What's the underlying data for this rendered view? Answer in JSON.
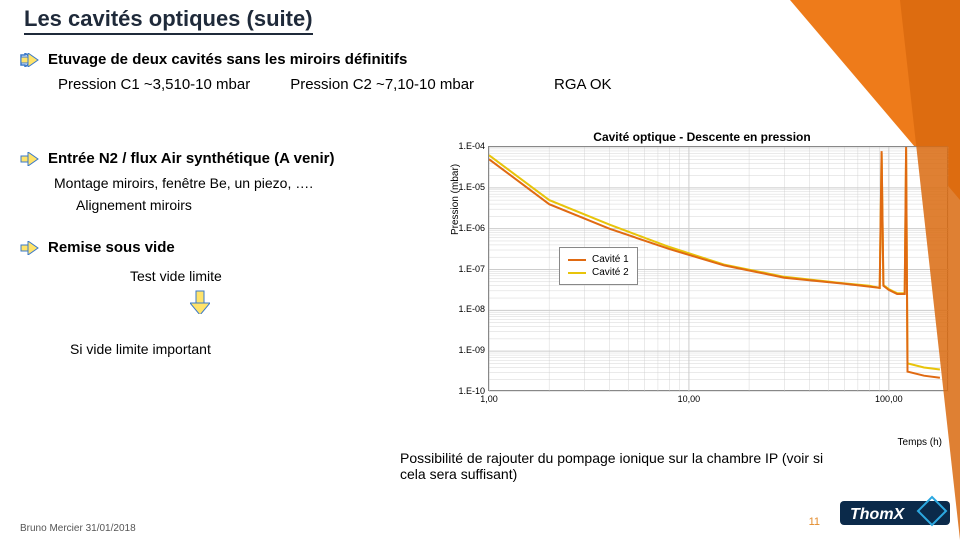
{
  "colors": {
    "accent": "#ee7b1a",
    "accent2": "#d96a0f",
    "title": "#1f2a3a",
    "cavity1": "#e06a12",
    "cavity2": "#e8c40a",
    "grid": "#cccccc",
    "plot_border": "#888888"
  },
  "title": "Les cavités optiques (suite)",
  "etuvage": "Etuvage de deux cavités sans les miroirs définitifs",
  "pression_c1": "Pression C1 ~3,510-10 mbar",
  "pression_c2": "Pression C2 ~7,10-10 mbar",
  "rga": "RGA OK",
  "entree": "Entrée N2 / flux Air synthétique  (A venir)",
  "montage": "Montage miroirs, fenêtre Be, un piezo, ….",
  "alignement": "Alignement miroirs",
  "remise": "Remise sous vide",
  "test": "Test vide limite",
  "sivide": "Si vide limite important",
  "bottom_note": "Possibilité de rajouter du pompage ionique sur la chambre IP (voir si cela sera suffisant)",
  "footer": "Bruno Mercier 31/01/2018",
  "page": "11",
  "chart": {
    "title": "Cavité optique - Descente en pression",
    "ylabel": "Pression (mbar)",
    "xlabel": "Temps (h)",
    "y_ticks": [
      "1.E-04",
      "1.E-05",
      "1.E-06",
      "1.E-07",
      "1.E-08",
      "1.E-09",
      "1.E-10"
    ],
    "x_ticks": [
      1,
      10,
      100
    ],
    "x_tick_labels": [
      "1,00",
      "10,00",
      "100,00"
    ],
    "xscale": "log",
    "yscale": "log",
    "xlim": [
      1,
      200
    ],
    "ylim_exp": [
      -10,
      -4
    ],
    "legend": [
      {
        "label": "Cavité 1",
        "color": "#e06a12"
      },
      {
        "label": "Cavité 2",
        "color": "#e8c40a"
      }
    ],
    "series": {
      "cavity1": {
        "color": "#e06a12",
        "width": 2,
        "points": [
          [
            1,
            -4.3
          ],
          [
            2,
            -5.4
          ],
          [
            4,
            -6.0
          ],
          [
            8,
            -6.5
          ],
          [
            15,
            -6.9
          ],
          [
            30,
            -7.2
          ],
          [
            60,
            -7.35
          ],
          [
            80,
            -7.42
          ],
          [
            90,
            -7.45
          ],
          [
            92,
            -4.1
          ],
          [
            94,
            -7.4
          ],
          [
            100,
            -7.5
          ],
          [
            110,
            -7.6
          ],
          [
            120,
            -7.6
          ],
          [
            122,
            -4.0
          ],
          [
            124,
            -9.5
          ],
          [
            150,
            -9.6
          ],
          [
            180,
            -9.65
          ]
        ]
      },
      "cavity2": {
        "color": "#e8c40a",
        "width": 2,
        "points": [
          [
            1,
            -4.2
          ],
          [
            2,
            -5.3
          ],
          [
            4,
            -5.9
          ],
          [
            8,
            -6.45
          ],
          [
            15,
            -6.88
          ],
          [
            30,
            -7.18
          ],
          [
            60,
            -7.34
          ],
          [
            80,
            -7.4
          ],
          [
            90,
            -7.45
          ],
          [
            92,
            -4.15
          ],
          [
            94,
            -7.38
          ],
          [
            100,
            -7.48
          ],
          [
            110,
            -7.58
          ],
          [
            120,
            -7.58
          ],
          [
            122,
            -4.05
          ],
          [
            124,
            -9.3
          ],
          [
            150,
            -9.4
          ],
          [
            180,
            -9.45
          ]
        ]
      }
    }
  },
  "logo_text": "ThomX"
}
